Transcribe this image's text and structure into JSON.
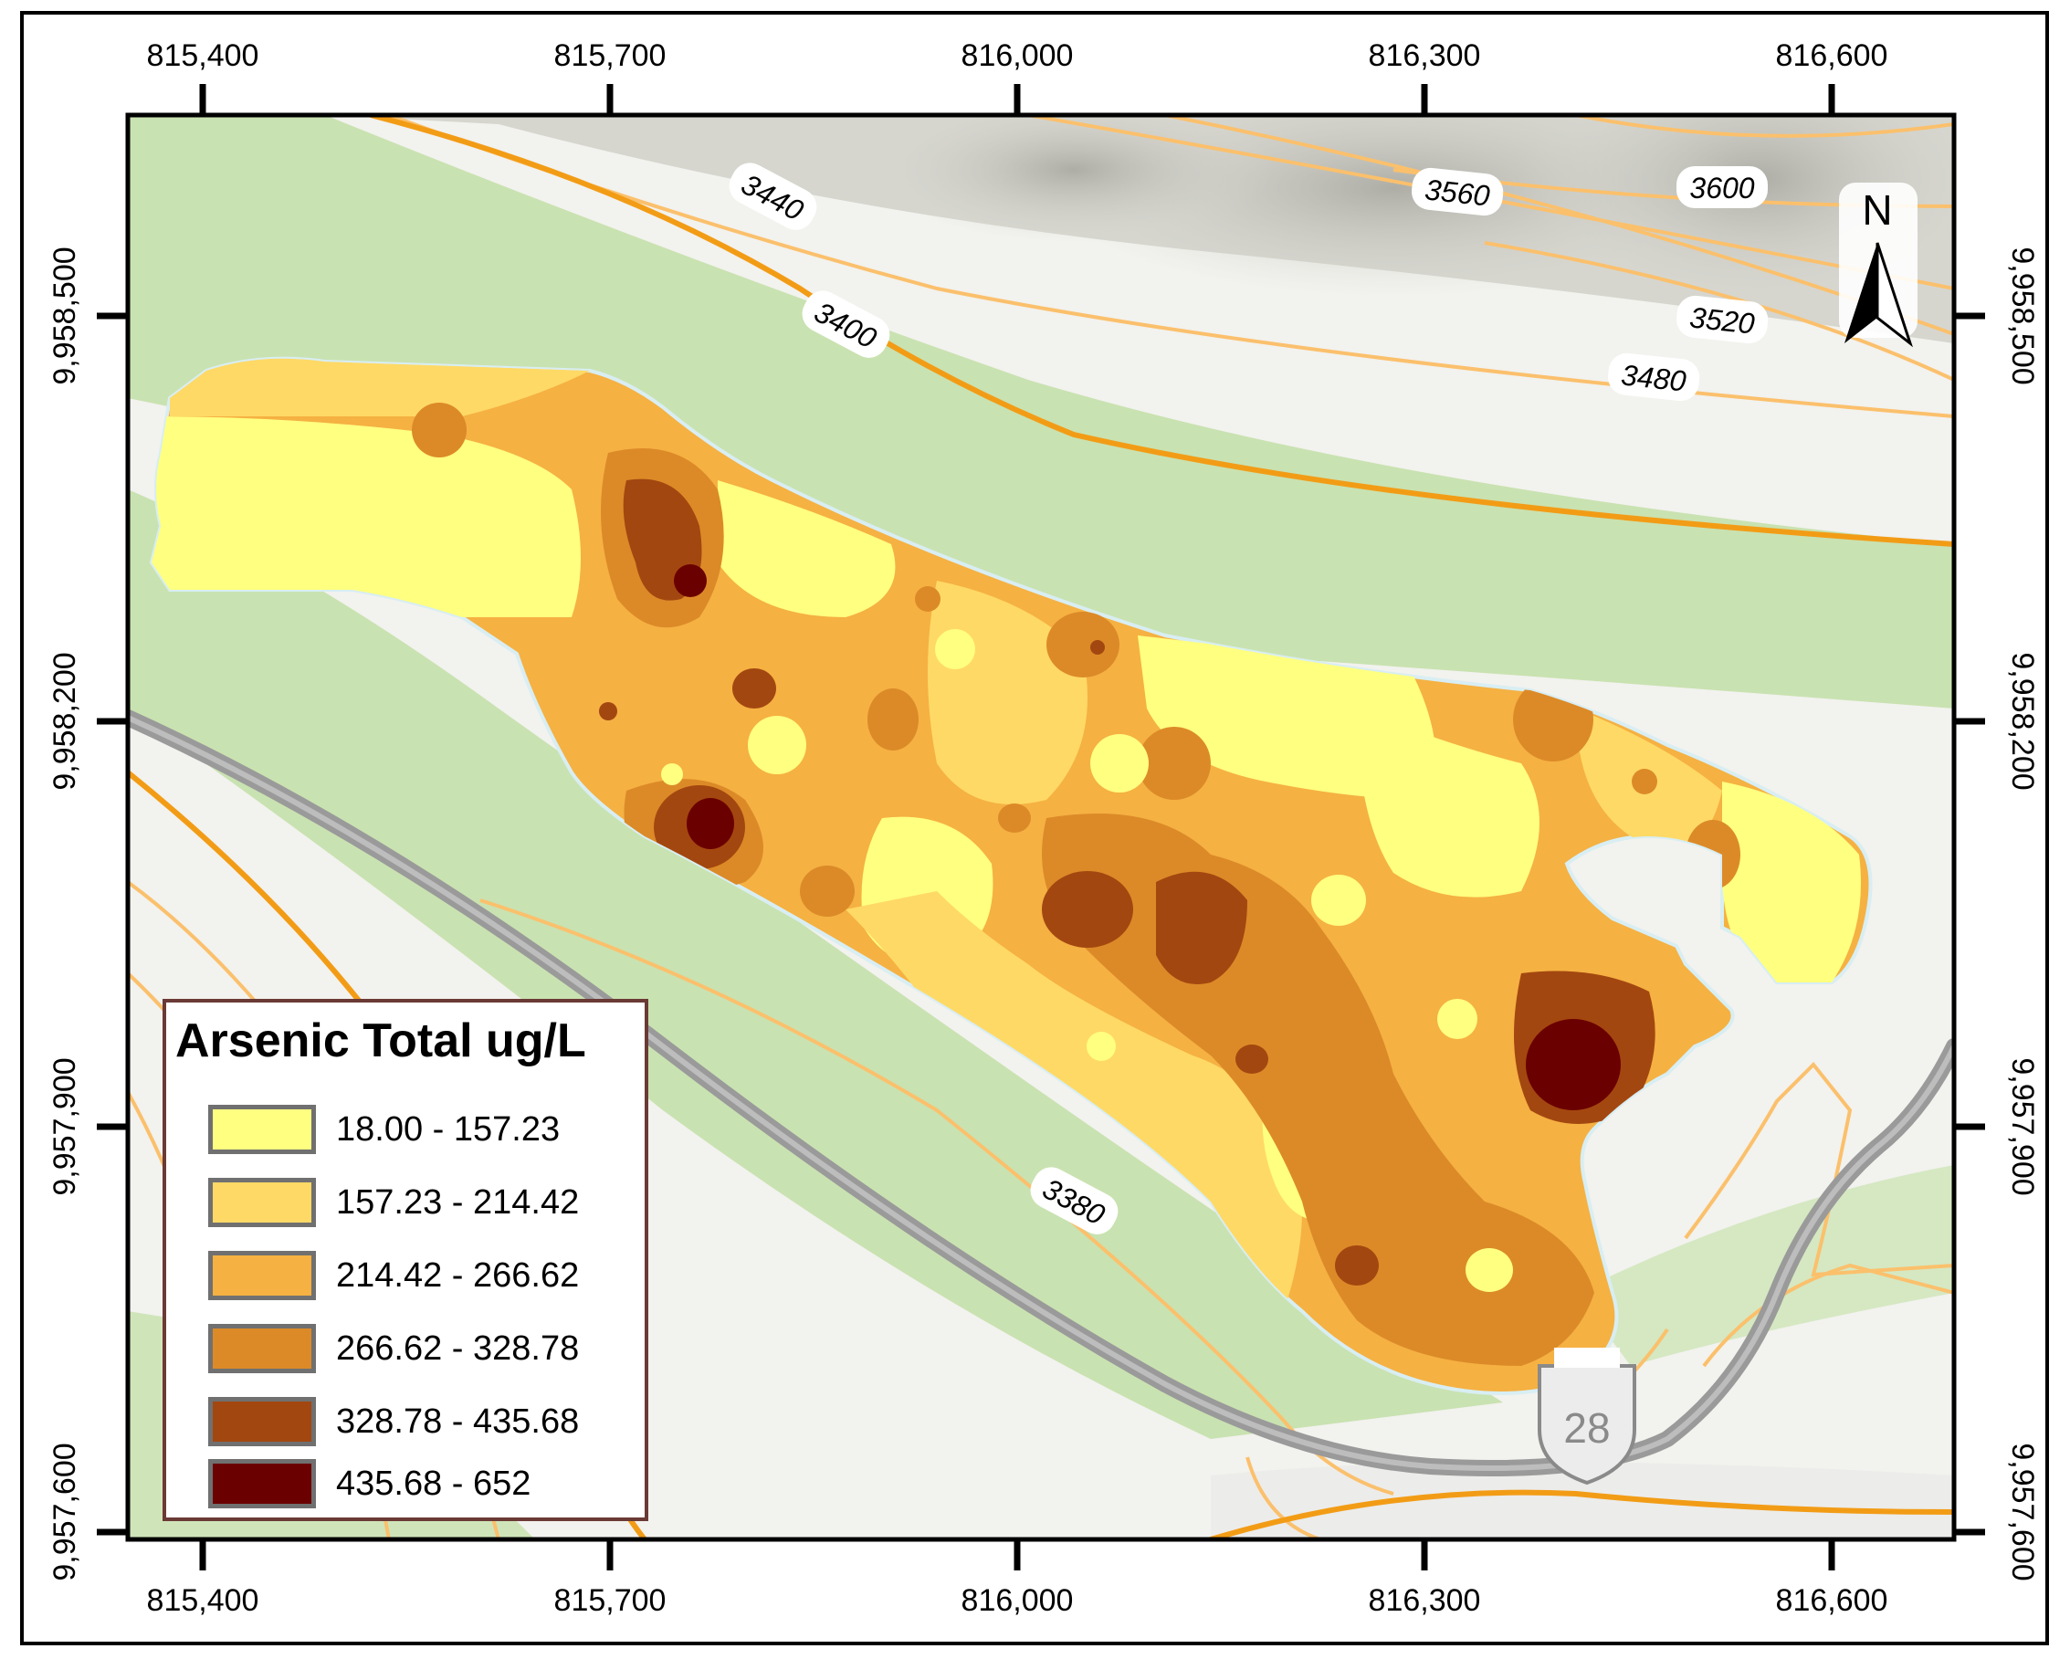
{
  "map": {
    "legend_title": "Arsenic Total ug/L",
    "classes": [
      {
        "label": "18.00 - 157.23",
        "color": "#ffff80"
      },
      {
        "label": "157.23 - 214.42",
        "color": "#ffd966"
      },
      {
        "label": "214.42 - 266.62",
        "color": "#f5b142"
      },
      {
        "label": "266.62 - 328.78",
        "color": "#dc8a28"
      },
      {
        "label": "328.78 - 435.68",
        "color": "#a34710"
      },
      {
        "label": "435.68 - 652",
        "color": "#6b0000"
      }
    ],
    "x_ticks": [
      "815,400",
      "815,700",
      "816,000",
      "816,300",
      "816,600"
    ],
    "y_ticks": [
      "9,958,500",
      "9,958,200",
      "9,957,900",
      "9,957,600"
    ],
    "contour_labels": [
      "3440",
      "3400",
      "3560",
      "3600",
      "3520",
      "3480",
      "3380"
    ],
    "north_arrow": "N",
    "road_shield": "28",
    "colors": {
      "vegetation": "#c9e2b1",
      "terrain": "#d4d4cc",
      "contour_major": "#f29c16",
      "contour_minor": "#fbc06c",
      "road": "#9a9a9a",
      "legend_border": "#6b3a35"
    }
  }
}
